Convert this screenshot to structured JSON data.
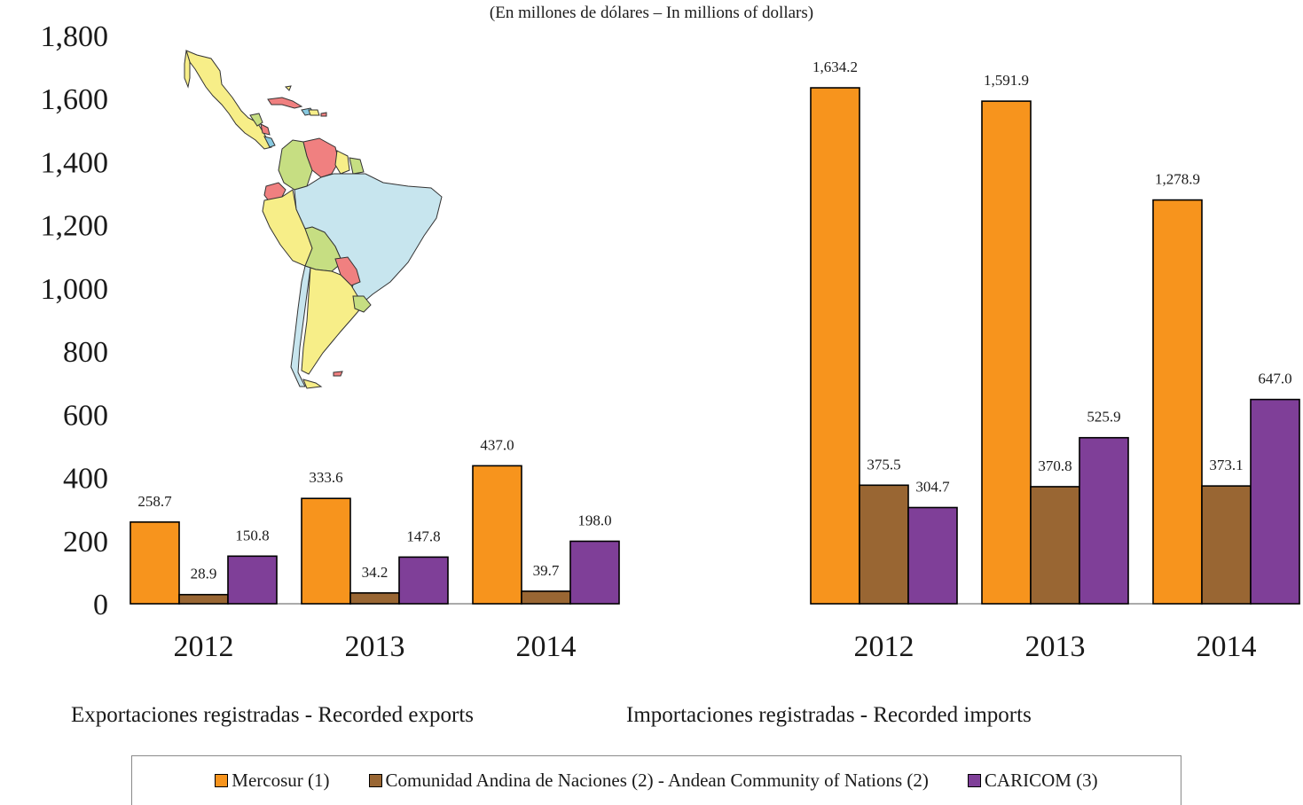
{
  "subtitle": "(En millones de dólares – In millions of dollars)",
  "panel_labels": {
    "exports": "Exportaciones registradas - Recorded exports",
    "imports": "Importaciones registradas - Recorded imports"
  },
  "legend": [
    {
      "label": "Mercosur (1)",
      "color": "#F7941D"
    },
    {
      "label": "Comunidad Andina de Naciones (2) - Andean Community of Nations (2)",
      "color": "#996633"
    },
    {
      "label": "CARICOM (3)",
      "color": "#7F3F98"
    }
  ],
  "chart_data": [
    {
      "type": "bar",
      "title": "Exportaciones registradas - Recorded exports",
      "categories": [
        "2012",
        "2013",
        "2014"
      ],
      "series": [
        {
          "name": "Mercosur (1)",
          "values": [
            258.7,
            333.6,
            437.0
          ],
          "labels": [
            "258.7",
            "333.6",
            "437.0"
          ]
        },
        {
          "name": "Comunidad Andina de Naciones (2) - Andean Community of Nations (2)",
          "values": [
            28.9,
            34.2,
            39.7
          ],
          "labels": [
            "28.9",
            "34.2",
            "39.7"
          ]
        },
        {
          "name": "CARICOM (3)",
          "values": [
            150.8,
            147.8,
            198.0
          ],
          "labels": [
            "150.8",
            "147.8",
            "198.0"
          ]
        }
      ],
      "ylim": [
        0,
        1800
      ],
      "yticks": [
        0,
        200,
        400,
        600,
        800,
        1000,
        1200,
        1400,
        1600,
        1800
      ],
      "ytick_labels": [
        "0",
        "200",
        "400",
        "600",
        "800",
        "1,000",
        "1,200",
        "1,400",
        "1,600",
        "1,800"
      ],
      "grid": false,
      "legend": "bottom"
    },
    {
      "type": "bar",
      "title": "Importaciones registradas - Recorded imports",
      "categories": [
        "2012",
        "2013",
        "2014"
      ],
      "series": [
        {
          "name": "Mercosur (1)",
          "values": [
            1634.2,
            1591.9,
            1278.9
          ],
          "labels": [
            "1,634.2",
            "1,591.9",
            "1,278.9"
          ]
        },
        {
          "name": "Comunidad Andina de Naciones (2) - Andean Community of Nations (2)",
          "values": [
            375.5,
            370.8,
            373.1
          ],
          "labels": [
            "375.5",
            "370.8",
            "373.1"
          ]
        },
        {
          "name": "CARICOM (3)",
          "values": [
            304.7,
            525.9,
            647.0
          ],
          "labels": [
            "304.7",
            "525.9",
            "647.0"
          ]
        }
      ],
      "ylim": [
        0,
        1800
      ],
      "grid": false,
      "legend": "bottom"
    }
  ]
}
